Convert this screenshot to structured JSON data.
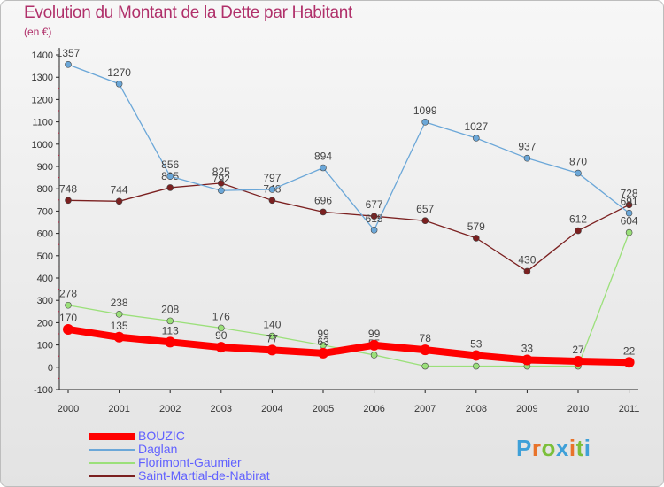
{
  "title": "Evolution du Montant de la Dette par Habitant",
  "subtitle": "(en €)",
  "logo_text": "Proxiti",
  "colors": {
    "title": "#b0306a",
    "legend_text": "#6161ff"
  },
  "chart_data": {
    "type": "line",
    "x": [
      "2000",
      "2001",
      "2002",
      "2003",
      "2004",
      "2005",
      "2006",
      "2007",
      "2008",
      "2009",
      "2010",
      "2011"
    ],
    "ylim": [
      -100,
      1400
    ],
    "yticks": [
      -100,
      0,
      100,
      200,
      300,
      400,
      500,
      600,
      700,
      800,
      900,
      1000,
      1100,
      1200,
      1300,
      1400
    ],
    "grid": false,
    "legend_position": "bottom-left",
    "series": [
      {
        "name": "BOUZIC",
        "color": "#ff0000",
        "values": [
          170,
          135,
          113,
          90,
          77,
          63,
          99,
          78,
          53,
          33,
          27,
          22
        ],
        "labels": [
          "170",
          "135",
          "113",
          "90",
          "77",
          "63",
          "99",
          "78",
          "53",
          "33",
          "27",
          "22"
        ]
      },
      {
        "name": "Daglan",
        "color": "#6ba7d8",
        "values": [
          1357,
          1270,
          856,
          792,
          797,
          894,
          615,
          1099,
          1027,
          937,
          870,
          691
        ],
        "labels": [
          "1357",
          "1270",
          "856",
          "792",
          "797",
          "894",
          "615",
          "1099",
          "1027",
          "937",
          "870",
          "691"
        ]
      },
      {
        "name": "Florimont-Gaumier",
        "color": "#9be07a",
        "values": [
          278,
          238,
          208,
          176,
          140,
          99,
          55,
          5,
          5,
          5,
          5,
          604
        ],
        "labels": [
          "278",
          "238",
          "208",
          "176",
          "140",
          "99",
          "55",
          "",
          "",
          "",
          "",
          "604"
        ]
      },
      {
        "name": "Saint-Martial-de-Nabirat",
        "color": "#7b2020",
        "values": [
          748,
          744,
          805,
          825,
          748,
          696,
          677,
          657,
          579,
          430,
          612,
          728
        ],
        "labels": [
          "748",
          "744",
          "805",
          "825",
          "748",
          "696",
          "677",
          "657",
          "579",
          "430",
          "612",
          "728"
        ]
      }
    ]
  }
}
